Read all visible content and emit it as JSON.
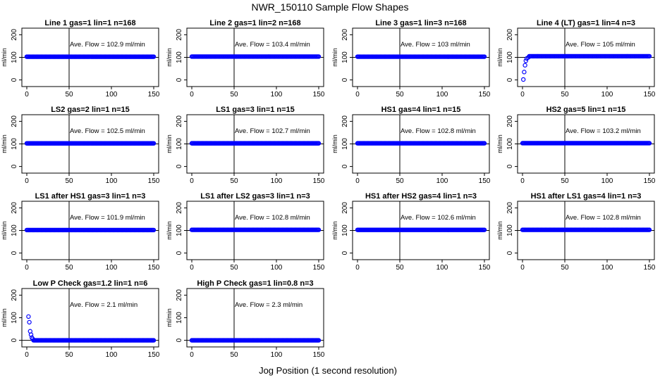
{
  "figure": {
    "title": "NWR_150110  Sample Flow Shapes",
    "xlabel": "Jog Position (1 second resolution)"
  },
  "colors": {
    "points": "#0000ff",
    "axis": "#000000"
  },
  "chart_data": [
    {
      "type": "scatter",
      "title": "Line 1 gas=1 lin=1 n=168",
      "ylabel": "ml/min",
      "xlim": [
        0,
        150
      ],
      "ylim": [
        -20,
        220
      ],
      "xticks": [
        0,
        50,
        100,
        150
      ],
      "yticks": [
        0,
        100,
        200
      ],
      "refline_x": 50,
      "refline_y": 100,
      "annotation": "Ave. Flow = 102.9  ml/min",
      "series": [
        {
          "profile": "flat",
          "level": 102.9,
          "x_range": [
            0,
            150
          ]
        }
      ]
    },
    {
      "type": "scatter",
      "title": "Line 2 gas=1 lin=2 n=168",
      "ylabel": "ml/min",
      "xlim": [
        0,
        150
      ],
      "ylim": [
        -20,
        220
      ],
      "xticks": [
        0,
        50,
        100,
        150
      ],
      "yticks": [
        0,
        100,
        200
      ],
      "refline_x": 50,
      "refline_y": 100,
      "annotation": "Ave. Flow = 103.4  ml/min",
      "series": [
        {
          "profile": "flat",
          "level": 103.4,
          "x_range": [
            0,
            150
          ]
        }
      ]
    },
    {
      "type": "scatter",
      "title": "Line 3 gas=1 lin=3 n=168",
      "ylabel": "ml/min",
      "xlim": [
        0,
        150
      ],
      "ylim": [
        -20,
        220
      ],
      "xticks": [
        0,
        50,
        100,
        150
      ],
      "yticks": [
        0,
        100,
        200
      ],
      "refline_x": 50,
      "refline_y": 100,
      "annotation": "Ave. Flow = 103  ml/min",
      "series": [
        {
          "profile": "flat",
          "level": 103,
          "x_range": [
            0,
            150
          ]
        }
      ]
    },
    {
      "type": "scatter",
      "title": "Line 4 (LT) gas=1 lin=4 n=3",
      "ylabel": "ml/min",
      "xlim": [
        0,
        150
      ],
      "ylim": [
        -20,
        220
      ],
      "xticks": [
        0,
        50,
        100,
        150
      ],
      "yticks": [
        0,
        100,
        200
      ],
      "refline_x": 50,
      "refline_y": 100,
      "annotation": "Ave. Flow = 105  ml/min",
      "series": [
        {
          "profile": "ramp_up",
          "level": 105,
          "x_range": [
            0,
            150
          ],
          "start_points": [
            [
              1,
              2
            ],
            [
              2,
              35
            ],
            [
              3,
              65
            ],
            [
              4,
              85
            ],
            [
              5,
              95
            ],
            [
              7,
              100
            ]
          ]
        }
      ]
    },
    {
      "type": "scatter",
      "title": "LS2 gas=2 lin=1 n=15",
      "ylabel": "ml/min",
      "xlim": [
        0,
        150
      ],
      "ylim": [
        -20,
        220
      ],
      "xticks": [
        0,
        50,
        100,
        150
      ],
      "yticks": [
        0,
        100,
        200
      ],
      "refline_x": 50,
      "refline_y": 100,
      "annotation": "Ave. Flow = 102.5  ml/min",
      "series": [
        {
          "profile": "flat",
          "level": 102.5,
          "x_range": [
            0,
            150
          ]
        }
      ]
    },
    {
      "type": "scatter",
      "title": "LS1 gas=3 lin=1 n=15",
      "ylabel": "ml/min",
      "xlim": [
        0,
        150
      ],
      "ylim": [
        -20,
        220
      ],
      "xticks": [
        0,
        50,
        100,
        150
      ],
      "yticks": [
        0,
        100,
        200
      ],
      "refline_x": 50,
      "refline_y": 100,
      "annotation": "Ave. Flow = 102.7  ml/min",
      "series": [
        {
          "profile": "flat",
          "level": 102.7,
          "x_range": [
            0,
            150
          ]
        }
      ]
    },
    {
      "type": "scatter",
      "title": "HS1 gas=4 lin=1 n=15",
      "ylabel": "ml/min",
      "xlim": [
        0,
        150
      ],
      "ylim": [
        -20,
        220
      ],
      "xticks": [
        0,
        50,
        100,
        150
      ],
      "yticks": [
        0,
        100,
        200
      ],
      "refline_x": 50,
      "refline_y": 100,
      "annotation": "Ave. Flow = 102.8  ml/min",
      "series": [
        {
          "profile": "flat",
          "level": 102.8,
          "x_range": [
            0,
            150
          ]
        }
      ]
    },
    {
      "type": "scatter",
      "title": "HS2 gas=5 lin=1 n=15",
      "ylabel": "ml/min",
      "xlim": [
        0,
        150
      ],
      "ylim": [
        -20,
        220
      ],
      "xticks": [
        0,
        50,
        100,
        150
      ],
      "yticks": [
        0,
        100,
        200
      ],
      "refline_x": 50,
      "refline_y": 100,
      "annotation": "Ave. Flow = 103.2  ml/min",
      "series": [
        {
          "profile": "flat",
          "level": 103.2,
          "x_range": [
            0,
            150
          ]
        }
      ]
    },
    {
      "type": "scatter",
      "title": "LS1 after HS1 gas=3 lin=1 n=3",
      "ylabel": "ml/min",
      "xlim": [
        0,
        150
      ],
      "ylim": [
        -20,
        220
      ],
      "xticks": [
        0,
        50,
        100,
        150
      ],
      "yticks": [
        0,
        100,
        200
      ],
      "refline_x": 50,
      "refline_y": 100,
      "annotation": "Ave. Flow = 101.9  ml/min",
      "series": [
        {
          "profile": "flat",
          "level": 101.9,
          "x_range": [
            0,
            150
          ]
        }
      ]
    },
    {
      "type": "scatter",
      "title": "LS1 after LS2 gas=3 lin=1 n=3",
      "ylabel": "ml/min",
      "xlim": [
        0,
        150
      ],
      "ylim": [
        -20,
        220
      ],
      "xticks": [
        0,
        50,
        100,
        150
      ],
      "yticks": [
        0,
        100,
        200
      ],
      "refline_x": 50,
      "refline_y": 100,
      "annotation": "Ave. Flow = 102.8  ml/min",
      "series": [
        {
          "profile": "flat",
          "level": 102.8,
          "x_range": [
            0,
            150
          ]
        }
      ]
    },
    {
      "type": "scatter",
      "title": "HS1 after HS2 gas=4 lin=1 n=3",
      "ylabel": "ml/min",
      "xlim": [
        0,
        150
      ],
      "ylim": [
        -20,
        220
      ],
      "xticks": [
        0,
        50,
        100,
        150
      ],
      "yticks": [
        0,
        100,
        200
      ],
      "refline_x": 50,
      "refline_y": 100,
      "annotation": "Ave. Flow = 102.6  ml/min",
      "series": [
        {
          "profile": "flat",
          "level": 102.6,
          "x_range": [
            0,
            150
          ]
        }
      ]
    },
    {
      "type": "scatter",
      "title": "HS1 after LS1 gas=4 lin=1 n=3",
      "ylabel": "ml/min",
      "xlim": [
        0,
        150
      ],
      "ylim": [
        -20,
        220
      ],
      "xticks": [
        0,
        50,
        100,
        150
      ],
      "yticks": [
        0,
        100,
        200
      ],
      "refline_x": 50,
      "refline_y": 100,
      "annotation": "Ave. Flow = 102.8  ml/min",
      "series": [
        {
          "profile": "flat",
          "level": 102.8,
          "x_range": [
            0,
            150
          ]
        }
      ]
    },
    {
      "type": "scatter",
      "title": "Low P Check gas=1.2 lin=1 n=6",
      "ylabel": "ml/min",
      "xlim": [
        0,
        150
      ],
      "ylim": [
        -20,
        220
      ],
      "xticks": [
        0,
        50,
        100,
        150
      ],
      "yticks": [
        0,
        100,
        200
      ],
      "refline_x": 50,
      "refline_y": 0,
      "annotation": "Ave. Flow = 2.1  ml/min",
      "series": [
        {
          "profile": "decay",
          "level": 0,
          "x_range": [
            0,
            150
          ],
          "start_points": [
            [
              2,
              105
            ],
            [
              3,
              80
            ],
            [
              4,
              40
            ],
            [
              5,
              25
            ],
            [
              6,
              12
            ],
            [
              7,
              6
            ]
          ]
        }
      ]
    },
    {
      "type": "scatter",
      "title": "High P Check gas=1 lin=0.8 n=3",
      "ylabel": "ml/min",
      "xlim": [
        0,
        150
      ],
      "ylim": [
        -20,
        220
      ],
      "xticks": [
        0,
        50,
        100,
        150
      ],
      "yticks": [
        0,
        100,
        200
      ],
      "refline_x": 50,
      "refline_y": 0,
      "annotation": "Ave. Flow = 2.3  ml/min",
      "series": [
        {
          "profile": "flat",
          "level": 0,
          "x_range": [
            0,
            150
          ]
        }
      ]
    }
  ]
}
